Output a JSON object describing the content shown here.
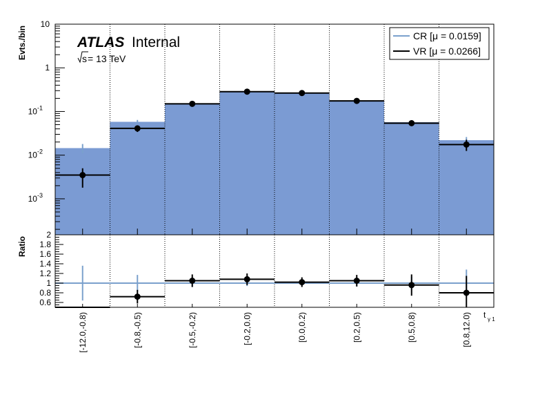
{
  "chart_data": {
    "type": "bar",
    "label": {
      "experiment": "ATLAS",
      "status": "Internal",
      "energy_prefix": "s",
      "energy_suffix": " = 13 TeV"
    },
    "xlabel": "t",
    "xlabel_subscript": "γ 1",
    "categories": [
      "[-12.0,-0.8)",
      "[-0.8,-0.5)",
      "[-0.5,-0.2)",
      "[-0.2,0.0)",
      "[0.0,0.2)",
      "[0.2,0.5)",
      "[0.5,0.8)",
      "[0.8,12.0)"
    ],
    "top_panel": {
      "ylabel": "Evts./bin",
      "yscale": "log",
      "ylim": [
        0.00015,
        10
      ],
      "yticks": [
        {
          "value": 0.001,
          "base": "10",
          "exp": "-3"
        },
        {
          "value": 0.01,
          "base": "10",
          "exp": "-2"
        },
        {
          "value": 0.1,
          "base": "10",
          "exp": "-1"
        },
        {
          "value": 1,
          "base": "1",
          "exp": ""
        },
        {
          "value": 10,
          "base": "10",
          "exp": ""
        }
      ],
      "series": [
        {
          "name": "CR [μ = 0.0159]",
          "style": "filled-histogram",
          "color": "#7b9bd3",
          "line_color": "#7aa0cc",
          "values": [
            0.0145,
            0.058,
            0.155,
            0.29,
            0.26,
            0.18,
            0.057,
            0.022
          ],
          "errors": [
            0.0035,
            0.006,
            0.008,
            0.01,
            0.01,
            0.009,
            0.005,
            0.004
          ]
        },
        {
          "name": "VR [μ = 0.0266]",
          "style": "points",
          "color": "#000000",
          "values": [
            0.0035,
            0.041,
            0.15,
            0.285,
            0.265,
            0.175,
            0.054,
            0.0175
          ],
          "errors_low": [
            0.0017,
            0.007,
            0.012,
            0.02,
            0.018,
            0.015,
            0.007,
            0.005
          ],
          "errors_high": [
            0.0015,
            0.007,
            0.012,
            0.02,
            0.018,
            0.015,
            0.007,
            0.005
          ]
        }
      ]
    },
    "ratio_panel": {
      "ylabel": "Ratio",
      "ylim": [
        0.5,
        2
      ],
      "yticks": [
        "0.6",
        "0.8",
        "1",
        "1.2",
        "1.4",
        "1.6",
        "1.8",
        "2"
      ],
      "reference_line": 1,
      "cr_errors": [
        0.36,
        0.17,
        0.08,
        0.06,
        0.06,
        0.07,
        0.13,
        0.28
      ],
      "values": [
        0.5,
        0.72,
        1.05,
        1.08,
        1.02,
        1.05,
        0.96,
        0.8
      ],
      "errors": [
        0.0,
        0.14,
        0.13,
        0.12,
        0.1,
        0.12,
        0.22,
        0.35
      ]
    },
    "grid": "vertical dotted lines at bin edges",
    "legend_position": "top-right"
  }
}
